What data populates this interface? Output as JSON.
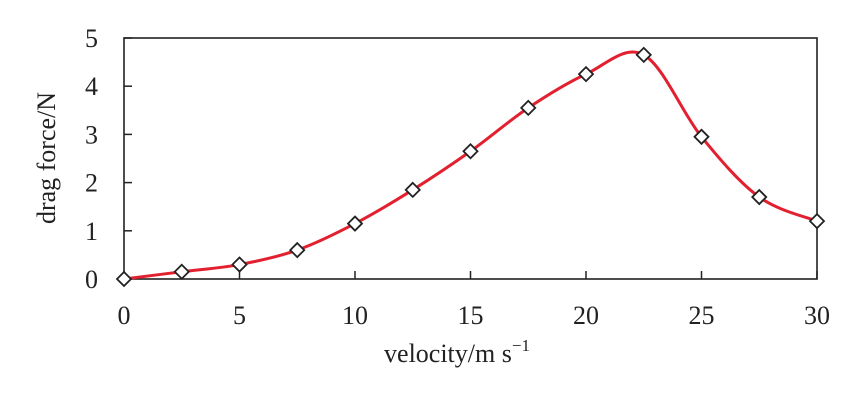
{
  "chart_data": {
    "type": "line",
    "title": "",
    "xlabel": "velocity/m s",
    "xlabel_superscript": "−1",
    "ylabel": "drag force/N",
    "xlim": [
      0,
      30
    ],
    "ylim": [
      0,
      5
    ],
    "xticks": [
      0,
      5,
      10,
      15,
      20,
      25,
      30
    ],
    "yticks": [
      0,
      1,
      2,
      3,
      4,
      5
    ],
    "grid": false,
    "legend": "none",
    "marker": "diamond",
    "colors": {
      "line": "#e3202f",
      "marker_fill": "#ffffff",
      "marker_stroke": "#222222",
      "axis": "#222222"
    },
    "series": [
      {
        "x": [
          0,
          2.5,
          5,
          7.5,
          10,
          12.5,
          15,
          17.5,
          20,
          22.5,
          25,
          27.5,
          30
        ],
        "y": [
          0.0,
          0.15,
          0.3,
          0.6,
          1.15,
          1.85,
          2.65,
          3.55,
          4.25,
          4.65,
          2.95,
          1.7,
          1.2
        ]
      }
    ]
  }
}
